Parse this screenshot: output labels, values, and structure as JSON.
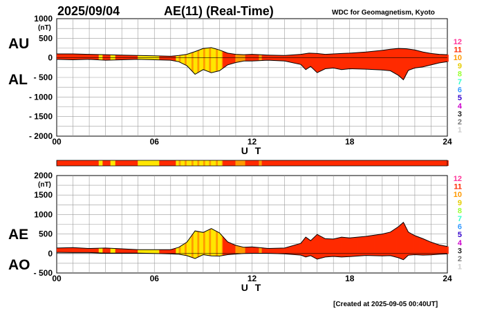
{
  "header": {
    "date": "2025/09/04",
    "title": "AE(11) (Real-Time)",
    "source": "WDC for Geomagnetism, Kyoto"
  },
  "footer": {
    "created": "[Created at 2025-09-05 00:40UT]"
  },
  "legend": {
    "levels": [
      "12",
      "11",
      "10",
      "9",
      "8",
      "7",
      "6",
      "5",
      "4",
      "3",
      "2",
      "1"
    ],
    "colors": [
      "#ff3399",
      "#ff2a00",
      "#ff9900",
      "#e6cc00",
      "#99ff33",
      "#33ffcc",
      "#3399ff",
      "#3300cc",
      "#cc00cc",
      "#222222",
      "#777777",
      "#cccccc"
    ]
  },
  "colors": {
    "red": "#ff2a00",
    "yellow": "#ffe600",
    "orange": "#ff9a00"
  },
  "chart_data": [
    {
      "type": "area",
      "panel": "AU/AL",
      "side_label_top": "AU",
      "side_label_bottom": "AL",
      "unit": "(nT)",
      "xlabel": "U T",
      "xlim": [
        0,
        24
      ],
      "ylim": [
        -2000,
        1000
      ],
      "yticks": [
        1000,
        500,
        0,
        -500,
        -1000,
        -1500,
        -2000
      ],
      "ytick_labels": [
        "1000",
        "500",
        "0",
        "- 500",
        "- 1000",
        "- 1500",
        "- 2000"
      ],
      "xticks": [
        0,
        6,
        12,
        18,
        24
      ],
      "xtick_labels": [
        "00",
        "06",
        "12",
        "18",
        "24"
      ],
      "series": [
        {
          "key": "AU",
          "x": [
            0,
            1,
            2,
            3,
            4,
            5,
            6,
            7,
            7.5,
            8,
            8.5,
            9,
            9.5,
            10,
            10.5,
            11,
            11.5,
            12,
            13,
            14,
            15,
            15.5,
            16,
            16.5,
            17,
            17.5,
            18,
            19,
            20,
            20.5,
            21,
            21.5,
            22,
            22.5,
            23,
            23.5,
            24
          ],
          "y": [
            100,
            100,
            90,
            80,
            70,
            60,
            50,
            40,
            60,
            90,
            160,
            240,
            260,
            200,
            120,
            90,
            80,
            90,
            70,
            60,
            90,
            120,
            110,
            90,
            100,
            110,
            120,
            150,
            190,
            220,
            240,
            230,
            200,
            150,
            110,
            90,
            80
          ]
        },
        {
          "key": "AL",
          "x": [
            0,
            1,
            2,
            3,
            4,
            5,
            6,
            7,
            7.5,
            8,
            8.5,
            9,
            9.5,
            10,
            10.5,
            11,
            11.5,
            12,
            13,
            14,
            15,
            15.3,
            15.6,
            16,
            16.5,
            17,
            17.5,
            18,
            19,
            20,
            20.5,
            21,
            21.3,
            21.6,
            22,
            22.5,
            23,
            23.5,
            24
          ],
          "y": [
            -40,
            -50,
            -40,
            -60,
            -50,
            -40,
            -50,
            -60,
            -100,
            -200,
            -420,
            -300,
            -380,
            -330,
            -180,
            -120,
            -80,
            -80,
            -60,
            -80,
            -170,
            -300,
            -220,
            -380,
            -280,
            -260,
            -300,
            -280,
            -290,
            -310,
            -330,
            -450,
            -560,
            -320,
            -260,
            -230,
            -180,
            -130,
            -100
          ]
        }
      ]
    },
    {
      "type": "area",
      "panel": "AE/AO",
      "side_label_top": "AE",
      "side_label_bottom": "AO",
      "unit": "(nT)",
      "xlabel": "U T",
      "xlim": [
        0,
        24
      ],
      "ylim": [
        -500,
        2000
      ],
      "yticks": [
        2000,
        1500,
        1000,
        500,
        0,
        -500
      ],
      "ytick_labels": [
        "2000",
        "1500",
        "1000",
        "500",
        "0",
        "- 500"
      ],
      "xticks": [
        0,
        6,
        12,
        18,
        24
      ],
      "xtick_labels": [
        "00",
        "06",
        "12",
        "18",
        "24"
      ],
      "series": [
        {
          "key": "AE",
          "x": [
            0,
            1,
            2,
            3,
            4,
            5,
            6,
            7,
            7.5,
            8,
            8.5,
            9,
            9.5,
            10,
            10.5,
            11,
            11.5,
            12,
            13,
            14,
            15,
            15.3,
            15.6,
            16,
            16.5,
            17,
            17.5,
            18,
            19,
            20,
            20.5,
            21,
            21.3,
            21.6,
            22,
            22.5,
            23,
            23.5,
            24
          ],
          "y": [
            140,
            150,
            130,
            140,
            120,
            100,
            100,
            100,
            160,
            290,
            580,
            540,
            640,
            530,
            300,
            210,
            160,
            170,
            130,
            140,
            260,
            420,
            330,
            490,
            380,
            370,
            420,
            400,
            440,
            500,
            550,
            690,
            800,
            550,
            460,
            380,
            290,
            220,
            180
          ]
        },
        {
          "key": "AO",
          "x": [
            0,
            1,
            2,
            3,
            4,
            5,
            6,
            7,
            7.5,
            8,
            8.5,
            9,
            9.5,
            10,
            10.5,
            11,
            11.5,
            12,
            13,
            14,
            15,
            15.3,
            15.6,
            16,
            16.5,
            17,
            17.5,
            18,
            19,
            20,
            20.5,
            21,
            21.3,
            21.6,
            22,
            22.5,
            23,
            23.5,
            24
          ],
          "y": [
            30,
            25,
            25,
            10,
            10,
            10,
            0,
            -10,
            -20,
            -55,
            -130,
            -30,
            -60,
            -65,
            -30,
            -15,
            0,
            5,
            5,
            -10,
            -40,
            -90,
            -55,
            -145,
            -90,
            -75,
            -90,
            -80,
            -50,
            -60,
            -55,
            -110,
            -160,
            -45,
            -30,
            -40,
            -35,
            -20,
            -10
          ]
        }
      ]
    }
  ]
}
